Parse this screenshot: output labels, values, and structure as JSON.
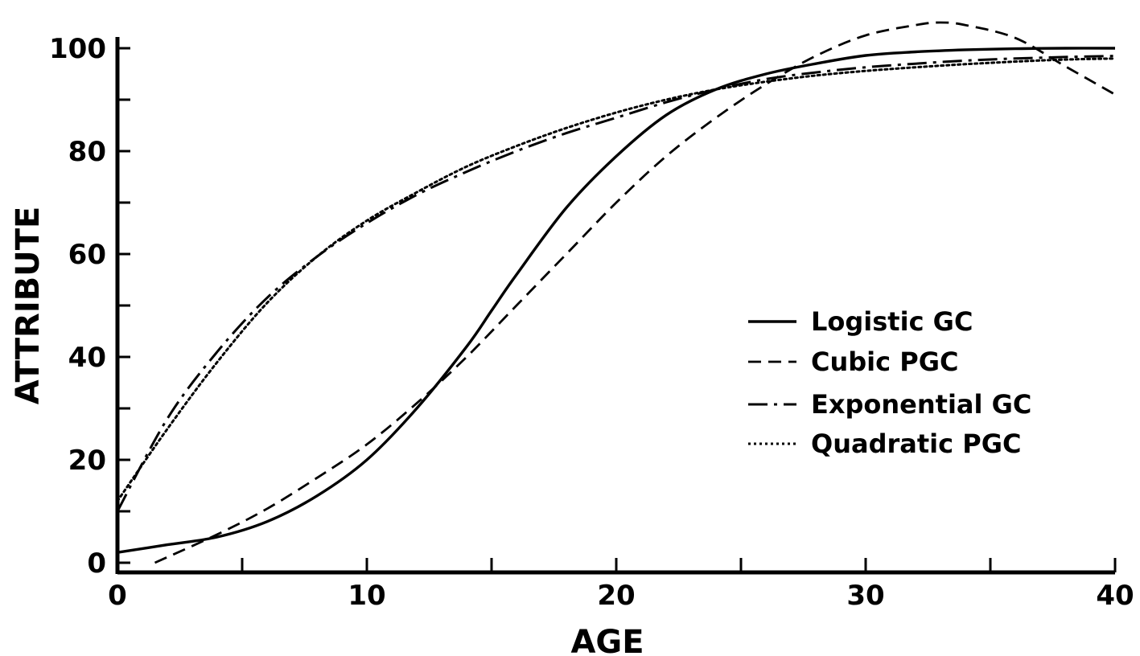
{
  "chart_data": {
    "type": "line",
    "title": "",
    "xlabel": "AGE",
    "ylabel": "ATTRIBUTE",
    "xlim": [
      0,
      40
    ],
    "ylim": [
      0,
      100
    ],
    "x_ticks": [
      "0",
      "10",
      "20",
      "30",
      "40"
    ],
    "y_ticks": [
      "0",
      "20",
      "40",
      "60",
      "80",
      "100"
    ],
    "grid": false,
    "legend_position": "right",
    "series": [
      {
        "name": "Logistic GC",
        "style": "solid",
        "x": [
          0,
          2,
          4,
          6,
          8,
          10,
          12,
          14,
          15,
          16,
          18,
          20,
          22,
          24,
          26,
          28,
          30,
          32,
          34,
          36,
          38,
          40
        ],
        "y": [
          2,
          3.5,
          5,
          8,
          13,
          20,
          30,
          42,
          49,
          56,
          69,
          79,
          87,
          92,
          95,
          97,
          98.6,
          99.3,
          99.7,
          99.9,
          100,
          100
        ]
      },
      {
        "name": "Cubic PGC",
        "style": "dashed",
        "x": [
          1.5,
          4,
          6,
          8,
          10,
          12,
          14,
          16,
          18,
          20,
          22,
          24,
          26,
          28,
          30,
          32,
          33,
          34,
          36,
          38,
          40
        ],
        "y": [
          0,
          5.5,
          10.5,
          16.5,
          23,
          31,
          40,
          50,
          60,
          70,
          79,
          86.5,
          93,
          98.5,
          102.5,
          104.5,
          105,
          104.5,
          102,
          96.5,
          91
        ]
      },
      {
        "name": "Exponential GC",
        "style": "dashdot",
        "x": [
          0,
          2,
          4,
          6,
          8,
          10,
          12,
          14,
          16,
          18,
          20,
          22,
          24,
          26,
          28,
          30,
          32,
          34,
          36,
          38,
          40
        ],
        "y": [
          10,
          28,
          41,
          51.5,
          59.5,
          66,
          71.5,
          76,
          80,
          83.5,
          86.5,
          89.5,
          92,
          94,
          95.3,
          96.3,
          97,
          97.6,
          98,
          98.3,
          98.5
        ]
      },
      {
        "name": "Quadratic PGC",
        "style": "dotted",
        "x": [
          0,
          2,
          4,
          6,
          8,
          10,
          12,
          14,
          16,
          18,
          20,
          22,
          24,
          26,
          28,
          30,
          32,
          34,
          36,
          38,
          40
        ],
        "y": [
          12,
          26,
          39,
          50.5,
          59.5,
          66.5,
          72,
          77,
          81,
          84.5,
          87.5,
          90,
          92,
          93.5,
          94.7,
          95.6,
          96.3,
          96.9,
          97.4,
          97.8,
          98
        ]
      }
    ]
  }
}
